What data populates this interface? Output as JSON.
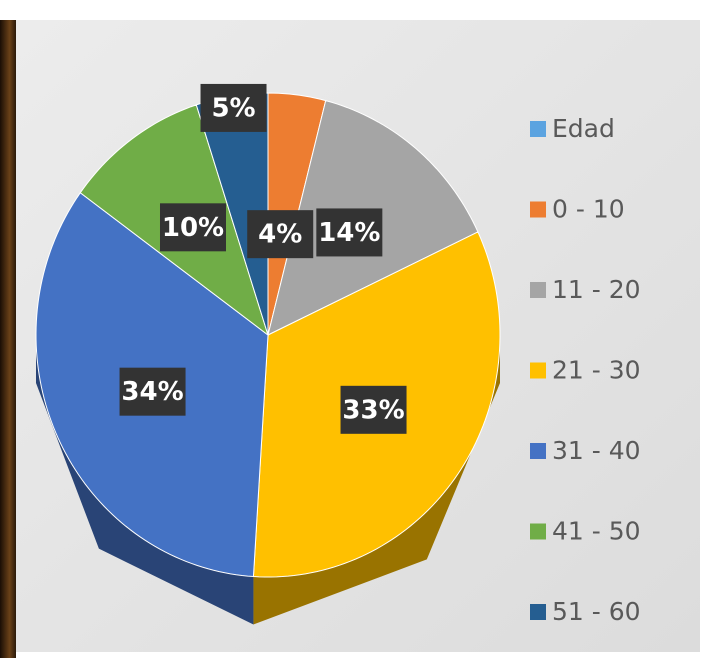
{
  "chart_data": {
    "type": "pie",
    "categories": [
      "Edad",
      "0 - 10",
      "11 - 20",
      "21 - 30",
      "31 - 40",
      "41 - 50",
      "51 - 60"
    ],
    "values": [
      null,
      4,
      14,
      33,
      34,
      10,
      5
    ],
    "value_labels": [
      null,
      "4%",
      "14%",
      "33%",
      "34%",
      "10%",
      "5%"
    ],
    "colors": [
      "#5ba3e0",
      "#ed7d31",
      "#a5a5a5",
      "#ffc000",
      "#4472c4",
      "#70ad47",
      "#255e91"
    ],
    "legend": "right"
  }
}
